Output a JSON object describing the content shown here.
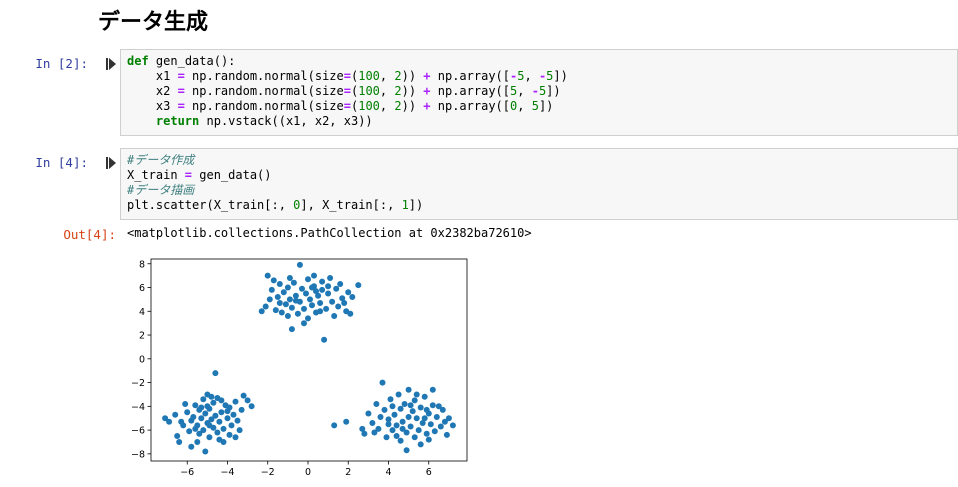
{
  "heading": "データ生成",
  "cells": [
    {
      "prompt": "In [2]:",
      "code_lines": [
        [
          {
            "t": "def",
            "c": "kw"
          },
          {
            "t": " "
          },
          {
            "t": "gen_data",
            "c": "fn"
          },
          {
            "t": "():"
          }
        ],
        [
          {
            "t": "    x1 "
          },
          {
            "t": "=",
            "c": "op"
          },
          {
            "t": " np.random.normal(size"
          },
          {
            "t": "=",
            "c": "op"
          },
          {
            "t": "("
          },
          {
            "t": "100",
            "c": "num"
          },
          {
            "t": ", "
          },
          {
            "t": "2",
            "c": "num"
          },
          {
            "t": ")) "
          },
          {
            "t": "+",
            "c": "op"
          },
          {
            "t": " np.array(["
          },
          {
            "t": "-",
            "c": "op"
          },
          {
            "t": "5",
            "c": "num"
          },
          {
            "t": ", "
          },
          {
            "t": "-",
            "c": "op"
          },
          {
            "t": "5",
            "c": "num"
          },
          {
            "t": "])"
          }
        ],
        [
          {
            "t": "    x2 "
          },
          {
            "t": "=",
            "c": "op"
          },
          {
            "t": " np.random.normal(size"
          },
          {
            "t": "=",
            "c": "op"
          },
          {
            "t": "("
          },
          {
            "t": "100",
            "c": "num"
          },
          {
            "t": ", "
          },
          {
            "t": "2",
            "c": "num"
          },
          {
            "t": ")) "
          },
          {
            "t": "+",
            "c": "op"
          },
          {
            "t": " np.array(["
          },
          {
            "t": "5",
            "c": "num"
          },
          {
            "t": ", "
          },
          {
            "t": "-",
            "c": "op"
          },
          {
            "t": "5",
            "c": "num"
          },
          {
            "t": "])"
          }
        ],
        [
          {
            "t": "    x3 "
          },
          {
            "t": "=",
            "c": "op"
          },
          {
            "t": " np.random.normal(size"
          },
          {
            "t": "=",
            "c": "op"
          },
          {
            "t": "("
          },
          {
            "t": "100",
            "c": "num"
          },
          {
            "t": ", "
          },
          {
            "t": "2",
            "c": "num"
          },
          {
            "t": ")) "
          },
          {
            "t": "+",
            "c": "op"
          },
          {
            "t": " np.array(["
          },
          {
            "t": "0",
            "c": "num"
          },
          {
            "t": ", "
          },
          {
            "t": "5",
            "c": "num"
          },
          {
            "t": "])"
          }
        ],
        [
          {
            "t": "    "
          },
          {
            "t": "return",
            "c": "kw"
          },
          {
            "t": " np.vstack((x1, x2, x3))"
          }
        ]
      ]
    },
    {
      "prompt": "In [4]:",
      "code_lines": [
        [
          {
            "t": "#データ作成",
            "c": "cm"
          }
        ],
        [
          {
            "t": "X_train "
          },
          {
            "t": "=",
            "c": "op"
          },
          {
            "t": " gen_data()"
          }
        ],
        [
          {
            "t": "#データ描画",
            "c": "cm"
          }
        ],
        [
          {
            "t": "plt.scatter(X_train[:, "
          },
          {
            "t": "0",
            "c": "num"
          },
          {
            "t": "], X_train[:, "
          },
          {
            "t": "1",
            "c": "num"
          },
          {
            "t": "])"
          }
        ]
      ]
    }
  ],
  "output": {
    "prompt": "Out[4]:",
    "text": "<matplotlib.collections.PathCollection at 0x2382ba72610>"
  },
  "chart_data": {
    "type": "scatter",
    "title": "",
    "xlabel": "",
    "ylabel": "",
    "xlim": [
      -7.8,
      7.9
    ],
    "ylim": [
      -8.6,
      8.4
    ],
    "xticks": [
      -6,
      -4,
      -2,
      0,
      2,
      4,
      6
    ],
    "yticks": [
      8,
      6,
      4,
      2,
      0,
      -2,
      -4,
      -6,
      -8
    ],
    "marker_color": "#1f77b4",
    "series": [
      {
        "points": [
          [
            -7.1,
            -5.0
          ],
          [
            -6.9,
            -5.3
          ],
          [
            -6.6,
            -4.7
          ],
          [
            -6.5,
            -6.5
          ],
          [
            -6.4,
            -7.0
          ],
          [
            -6.2,
            -5.6
          ],
          [
            -6.0,
            -4.5
          ],
          [
            -5.9,
            -6.1
          ],
          [
            -5.8,
            -5.2
          ],
          [
            -5.8,
            -7.4
          ],
          [
            -5.7,
            -4.9
          ],
          [
            -5.6,
            -3.9
          ],
          [
            -5.5,
            -5.6
          ],
          [
            -5.4,
            -6.3
          ],
          [
            -5.4,
            -4.3
          ],
          [
            -5.3,
            -5.0
          ],
          [
            -5.2,
            -3.4
          ],
          [
            -5.2,
            -6.0
          ],
          [
            -5.1,
            -4.6
          ],
          [
            -5.0,
            -5.4
          ],
          [
            -5.0,
            -3.0
          ],
          [
            -4.9,
            -6.6
          ],
          [
            -4.9,
            -4.2
          ],
          [
            -4.8,
            -5.1
          ],
          [
            -4.7,
            -3.7
          ],
          [
            -4.7,
            -5.8
          ],
          [
            -4.6,
            -4.8
          ],
          [
            -4.5,
            -6.2
          ],
          [
            -4.5,
            -3.3
          ],
          [
            -4.4,
            -5.3
          ],
          [
            -4.3,
            -4.5
          ],
          [
            -4.2,
            -7.0
          ],
          [
            -4.2,
            -5.9
          ],
          [
            -4.1,
            -3.9
          ],
          [
            -4.0,
            -5.0
          ],
          [
            -3.9,
            -6.4
          ],
          [
            -3.9,
            -4.1
          ],
          [
            -3.8,
            -5.6
          ],
          [
            -3.7,
            -4.7
          ],
          [
            -3.6,
            -3.6
          ],
          [
            -3.5,
            -5.2
          ],
          [
            -3.4,
            -6.0
          ],
          [
            -3.3,
            -4.3
          ],
          [
            -3.2,
            -3.1
          ],
          [
            -3.0,
            -3.5
          ],
          [
            -2.8,
            -4.0
          ],
          [
            -5.1,
            -7.8
          ],
          [
            -4.6,
            -1.2
          ],
          [
            -6.1,
            -3.8
          ],
          [
            -5.6,
            -5.9
          ],
          [
            -5.3,
            -4.1
          ],
          [
            -4.9,
            -5.6
          ],
          [
            -4.4,
            -6.8
          ],
          [
            -4.0,
            -4.4
          ],
          [
            -5.5,
            -7.0
          ],
          [
            -4.8,
            -3.2
          ],
          [
            -6.3,
            -5.3
          ],
          [
            -3.6,
            -6.6
          ],
          [
            -5.0,
            -4.0
          ],
          [
            -4.3,
            -3.5
          ]
        ]
      },
      {
        "points": [
          [
            1.3,
            -5.6
          ],
          [
            1.9,
            -5.3
          ],
          [
            2.7,
            -5.9
          ],
          [
            2.8,
            -6.3
          ],
          [
            3.0,
            -4.6
          ],
          [
            3.2,
            -5.4
          ],
          [
            3.4,
            -3.8
          ],
          [
            3.5,
            -5.9
          ],
          [
            3.7,
            -2.0
          ],
          [
            3.8,
            -4.3
          ],
          [
            3.9,
            -6.6
          ],
          [
            4.0,
            -5.1
          ],
          [
            4.1,
            -3.4
          ],
          [
            4.2,
            -6.0
          ],
          [
            4.3,
            -4.7
          ],
          [
            4.4,
            -5.6
          ],
          [
            4.5,
            -3.0
          ],
          [
            4.6,
            -6.9
          ],
          [
            4.6,
            -4.2
          ],
          [
            4.7,
            -5.3
          ],
          [
            4.8,
            -3.8
          ],
          [
            4.9,
            -6.2
          ],
          [
            5.0,
            -4.9
          ],
          [
            5.0,
            -2.6
          ],
          [
            5.1,
            -5.7
          ],
          [
            5.2,
            -4.4
          ],
          [
            5.3,
            -6.6
          ],
          [
            5.3,
            -3.5
          ],
          [
            5.4,
            -5.0
          ],
          [
            5.5,
            -6.0
          ],
          [
            5.6,
            -4.1
          ],
          [
            5.7,
            -5.4
          ],
          [
            5.8,
            -3.2
          ],
          [
            5.9,
            -6.3
          ],
          [
            6.0,
            -4.6
          ],
          [
            6.1,
            -5.5
          ],
          [
            6.2,
            -3.9
          ],
          [
            6.3,
            -6.1
          ],
          [
            6.2,
            -2.6
          ],
          [
            6.4,
            -4.9
          ],
          [
            6.6,
            -5.7
          ],
          [
            6.7,
            -4.3
          ],
          [
            6.9,
            -6.4
          ],
          [
            7.0,
            -5.0
          ],
          [
            7.2,
            -5.6
          ],
          [
            4.9,
            -7.7
          ],
          [
            5.6,
            -7.2
          ],
          [
            4.2,
            -4.0
          ],
          [
            3.6,
            -4.9
          ],
          [
            5.4,
            -3.0
          ],
          [
            6.0,
            -6.8
          ],
          [
            4.7,
            -5.9
          ],
          [
            5.8,
            -5.0
          ],
          [
            3.3,
            -6.2
          ],
          [
            5.1,
            -3.9
          ],
          [
            6.5,
            -4.0
          ],
          [
            4.4,
            -6.5
          ],
          [
            5.9,
            -4.3
          ],
          [
            4.0,
            -5.5
          ],
          [
            6.8,
            -5.3
          ]
        ]
      },
      {
        "points": [
          [
            -2.3,
            4.0
          ],
          [
            -2.1,
            4.4
          ],
          [
            -2.0,
            7.0
          ],
          [
            -1.8,
            5.8
          ],
          [
            -1.7,
            6.6
          ],
          [
            -1.6,
            4.1
          ],
          [
            -1.5,
            5.2
          ],
          [
            -1.4,
            6.3
          ],
          [
            -1.3,
            3.9
          ],
          [
            -1.2,
            5.6
          ],
          [
            -1.1,
            4.6
          ],
          [
            -1.0,
            6.0
          ],
          [
            -1.0,
            3.6
          ],
          [
            -0.9,
            5.0
          ],
          [
            -0.8,
            4.3
          ],
          [
            -0.7,
            6.4
          ],
          [
            -0.6,
            5.3
          ],
          [
            -0.5,
            3.8
          ],
          [
            -0.4,
            4.8
          ],
          [
            -0.4,
            7.9
          ],
          [
            -0.3,
            5.9
          ],
          [
            -0.2,
            4.2
          ],
          [
            -0.1,
            5.5
          ],
          [
            0.0,
            6.7
          ],
          [
            0.0,
            3.4
          ],
          [
            0.1,
            5.0
          ],
          [
            0.2,
            4.5
          ],
          [
            0.3,
            6.1
          ],
          [
            0.3,
            7.0
          ],
          [
            0.4,
            3.9
          ],
          [
            0.5,
            5.3
          ],
          [
            0.6,
            4.7
          ],
          [
            0.7,
            6.5
          ],
          [
            0.7,
            5.8
          ],
          [
            0.8,
            1.6
          ],
          [
            0.9,
            4.2
          ],
          [
            1.0,
            5.5
          ],
          [
            1.1,
            6.8
          ],
          [
            1.2,
            4.8
          ],
          [
            1.3,
            3.6
          ],
          [
            1.4,
            5.9
          ],
          [
            1.5,
            4.4
          ],
          [
            1.6,
            6.3
          ],
          [
            1.7,
            5.1
          ],
          [
            1.9,
            4.0
          ],
          [
            2.0,
            5.6
          ],
          [
            2.1,
            3.8
          ],
          [
            2.2,
            5.2
          ],
          [
            2.5,
            6.2
          ],
          [
            -0.8,
            2.5
          ],
          [
            0.2,
            6.0
          ],
          [
            -0.6,
            4.9
          ],
          [
            0.6,
            4.0
          ],
          [
            -1.4,
            4.7
          ],
          [
            1.0,
            6.1
          ],
          [
            -0.2,
            3.0
          ],
          [
            0.4,
            5.7
          ],
          [
            -1.9,
            5.0
          ],
          [
            1.8,
            4.7
          ],
          [
            -0.9,
            6.8
          ]
        ]
      }
    ]
  }
}
